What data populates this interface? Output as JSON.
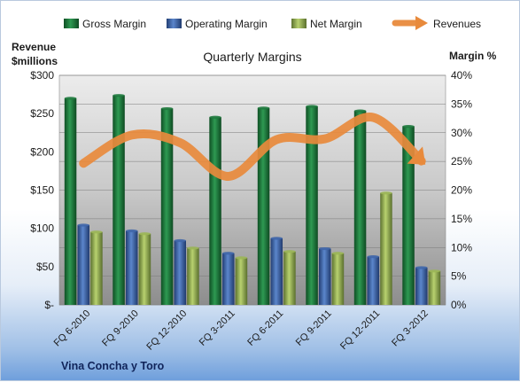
{
  "chart_data": {
    "type": "bar",
    "title": "Quarterly Margins",
    "footer": "Vina Concha  y Toro",
    "ylabel_left": [
      "Revenue",
      "$millions"
    ],
    "ylabel_right": "Margin %",
    "categories": [
      "FQ 6-2010",
      "FQ 9-2010",
      "FQ 12-2010",
      "FQ 3-2011",
      "FQ 6-2011",
      "FQ 9-2011",
      "FQ 12-2011",
      "FQ 3-2012"
    ],
    "ylim_left": [
      0,
      300
    ],
    "ylim_right": [
      0,
      40
    ],
    "left_ticks": [
      "$-",
      "$50",
      "$100",
      "$150",
      "$200",
      "$250",
      "$300"
    ],
    "right_ticks": [
      "0%",
      "5%",
      "10%",
      "15%",
      "20%",
      "25%",
      "30%",
      "35%",
      "40%"
    ],
    "series": [
      {
        "name": "Gross Margin",
        "axis": "right",
        "color": "#1f7a3e",
        "values": [
          36,
          36.5,
          34.2,
          32.7,
          34.3,
          34.6,
          33.8,
          31.1
        ]
      },
      {
        "name": "Operating Margin",
        "axis": "right",
        "color": "#3f66aa",
        "values": [
          13.9,
          12.9,
          11.2,
          9.0,
          11.6,
          9.8,
          8.4,
          6.5
        ]
      },
      {
        "name": "Net Margin",
        "axis": "right",
        "color": "#9bb657",
        "values": [
          12.7,
          12.4,
          9.9,
          8.2,
          9.3,
          9.0,
          19.5,
          5.9
        ]
      },
      {
        "name": "Revenues",
        "axis": "left",
        "color": "#e88a3c",
        "type": "line",
        "values": [
          185,
          222,
          212,
          168,
          216,
          217,
          245,
          188
        ]
      }
    ],
    "grid": true,
    "legend": "top"
  }
}
